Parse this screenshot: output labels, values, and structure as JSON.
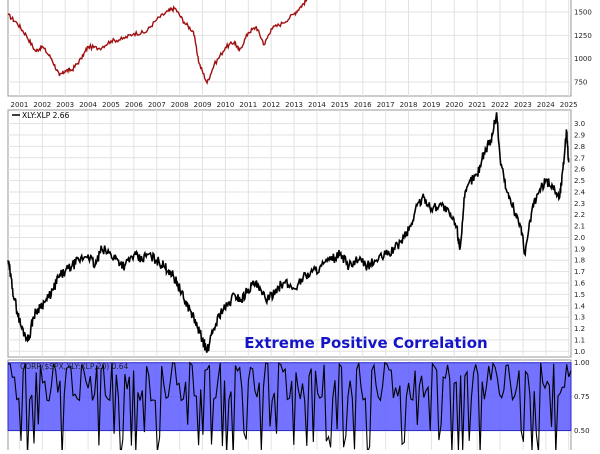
{
  "chart_data": [
    {
      "type": "line",
      "panel": "price",
      "title": "",
      "x_ticks": [
        "2001",
        "2002",
        "2003",
        "2004",
        "2005",
        "2006",
        "2007",
        "2008",
        "2009",
        "2010",
        "2011",
        "2012",
        "2013",
        "2014",
        "2015",
        "2016",
        "2017",
        "2018",
        "2019",
        "2020",
        "2021",
        "2022",
        "2023",
        "2024",
        "2025"
      ],
      "y_ticks": [
        "750",
        "1000",
        "1250",
        "1500"
      ],
      "ylim": [
        600,
        1650
      ],
      "xlim": [
        2000.5,
        2025.1
      ],
      "grid": true,
      "color": "#a01010",
      "series": [
        {
          "x": [
            2000.5,
            2000.9,
            2001.3,
            2001.7,
            2002.0,
            2002.4,
            2002.75,
            2003.0,
            2003.3,
            2003.7,
            2004.0,
            2004.5,
            2005.0,
            2005.5,
            2006.0,
            2006.5,
            2007.0,
            2007.5,
            2007.8,
            2008.2,
            2008.6,
            2008.85,
            2009.2,
            2009.5,
            2010.0,
            2010.4,
            2010.6,
            2011.0,
            2011.35,
            2011.7,
            2012.0,
            2012.5,
            2013.0,
            2013.3,
            2013.6
          ],
          "values": [
            1470,
            1380,
            1250,
            1080,
            1130,
            1000,
            815,
            870,
            880,
            1000,
            1130,
            1110,
            1190,
            1210,
            1270,
            1280,
            1420,
            1510,
            1540,
            1390,
            1290,
            950,
            740,
            930,
            1120,
            1180,
            1080,
            1280,
            1340,
            1150,
            1320,
            1380,
            1480,
            1560,
            1640
          ]
        }
      ]
    },
    {
      "type": "line",
      "panel": "ratio",
      "title": "",
      "legend_label": "XLY:XLP 2.66",
      "y_ticks": [
        "1.0",
        "1.1",
        "1.2",
        "1.3",
        "1.4",
        "1.5",
        "1.6",
        "1.7",
        "1.8",
        "1.9",
        "2.0",
        "2.1",
        "2.2",
        "2.3",
        "2.4",
        "2.5",
        "2.6",
        "2.7",
        "2.8",
        "2.9",
        "3.0"
      ],
      "ylim": [
        0.95,
        3.12
      ],
      "xlim": [
        2000.5,
        2025.1
      ],
      "grid": true,
      "annotation": "Extreme Positive Correlation",
      "color": "#000000",
      "series": [
        {
          "x": [
            2000.5,
            2000.7,
            2000.9,
            2001.1,
            2001.4,
            2001.6,
            2001.9,
            2002.2,
            2002.5,
            2002.7,
            2003.0,
            2003.3,
            2003.6,
            2004.0,
            2004.3,
            2004.6,
            2005.0,
            2005.3,
            2005.6,
            2006.0,
            2006.3,
            2006.6,
            2007.0,
            2007.3,
            2007.6,
            2007.9,
            2008.2,
            2008.5,
            2008.8,
            2009.0,
            2009.2,
            2009.5,
            2009.8,
            2010.1,
            2010.4,
            2010.7,
            2011.0,
            2011.3,
            2011.6,
            2011.9,
            2012.2,
            2012.6,
            2013.0,
            2013.4,
            2013.8,
            2014.2,
            2014.6,
            2015.0,
            2015.4,
            2015.8,
            2016.2,
            2016.6,
            2017.0,
            2017.4,
            2017.8,
            2018.1,
            2018.4,
            2018.7,
            2019.0,
            2019.4,
            2019.8,
            2020.1,
            2020.25,
            2020.45,
            2020.7,
            2021.0,
            2021.3,
            2021.6,
            2021.85,
            2022.0,
            2022.3,
            2022.6,
            2022.9,
            2023.1,
            2023.4,
            2023.7,
            2024.0,
            2024.3,
            2024.6,
            2024.75,
            2024.9,
            2025.0
          ],
          "values": [
            1.8,
            1.55,
            1.35,
            1.2,
            1.1,
            1.3,
            1.4,
            1.45,
            1.55,
            1.65,
            1.7,
            1.75,
            1.8,
            1.85,
            1.75,
            1.9,
            1.85,
            1.8,
            1.75,
            1.85,
            1.8,
            1.85,
            1.8,
            1.75,
            1.7,
            1.6,
            1.45,
            1.35,
            1.2,
            1.1,
            1.0,
            1.2,
            1.35,
            1.4,
            1.5,
            1.45,
            1.55,
            1.6,
            1.5,
            1.45,
            1.55,
            1.6,
            1.55,
            1.65,
            1.7,
            1.75,
            1.8,
            1.85,
            1.75,
            1.8,
            1.75,
            1.8,
            1.85,
            1.9,
            2.0,
            2.1,
            2.3,
            2.35,
            2.25,
            2.3,
            2.2,
            2.1,
            1.9,
            2.35,
            2.5,
            2.55,
            2.75,
            2.85,
            3.1,
            2.7,
            2.4,
            2.25,
            2.1,
            1.85,
            2.25,
            2.4,
            2.5,
            2.45,
            2.35,
            2.6,
            2.95,
            2.66
          ]
        }
      ]
    },
    {
      "type": "line",
      "panel": "correlation",
      "legend_label": "CORR($SPX,XLY:XLP,20) 0.64",
      "y_ticks": [
        "0.50",
        "0.75",
        "1.00"
      ],
      "ylim": [
        0.32,
        1.02
      ],
      "xlim": [
        2000.5,
        2025.1
      ],
      "grid": true,
      "highlight_band": [
        0.5,
        1.0
      ],
      "highlight_color": "#5b5bff",
      "color": "#000000"
    }
  ]
}
